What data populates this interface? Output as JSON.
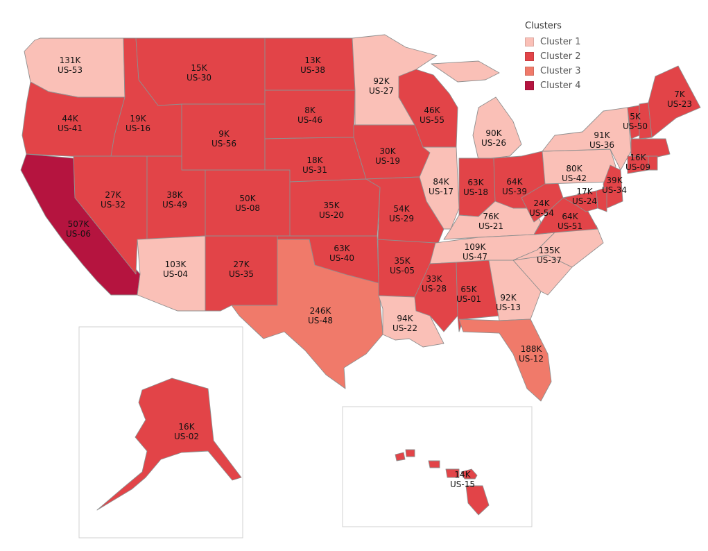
{
  "legend": {
    "title": "Clusters",
    "items": [
      {
        "key": "c1",
        "label": "Cluster 1",
        "color": "#fac0b7"
      },
      {
        "key": "c2",
        "label": "Cluster 2",
        "color": "#e24448"
      },
      {
        "key": "c3",
        "label": "Cluster 3",
        "color": "#f07a6a"
      },
      {
        "key": "c4",
        "label": "Cluster 4",
        "color": "#b5143f"
      }
    ]
  },
  "states": [
    {
      "id": "WA",
      "value": "131K",
      "code": "US-53",
      "cluster": "c1"
    },
    {
      "id": "OR",
      "value": "44K",
      "code": "US-41",
      "cluster": "c2"
    },
    {
      "id": "CA",
      "value": "507K",
      "code": "US-06",
      "cluster": "c4"
    },
    {
      "id": "ID",
      "value": "19K",
      "code": "US-16",
      "cluster": "c2"
    },
    {
      "id": "NV",
      "value": "27K",
      "code": "US-32",
      "cluster": "c2"
    },
    {
      "id": "MT",
      "value": "15K",
      "code": "US-30",
      "cluster": "c2"
    },
    {
      "id": "WY",
      "value": "9K",
      "code": "US-56",
      "cluster": "c2"
    },
    {
      "id": "UT",
      "value": "38K",
      "code": "US-49",
      "cluster": "c2"
    },
    {
      "id": "AZ",
      "value": "103K",
      "code": "US-04",
      "cluster": "c1"
    },
    {
      "id": "CO",
      "value": "50K",
      "code": "US-08",
      "cluster": "c2"
    },
    {
      "id": "NM",
      "value": "27K",
      "code": "US-35",
      "cluster": "c2"
    },
    {
      "id": "ND",
      "value": "13K",
      "code": "US-38",
      "cluster": "c2"
    },
    {
      "id": "SD",
      "value": "8K",
      "code": "US-46",
      "cluster": "c2"
    },
    {
      "id": "NE",
      "value": "18K",
      "code": "US-31",
      "cluster": "c2"
    },
    {
      "id": "KS",
      "value": "35K",
      "code": "US-20",
      "cluster": "c2"
    },
    {
      "id": "OK",
      "value": "63K",
      "code": "US-40",
      "cluster": "c2"
    },
    {
      "id": "TX",
      "value": "246K",
      "code": "US-48",
      "cluster": "c3"
    },
    {
      "id": "MN",
      "value": "92K",
      "code": "US-27",
      "cluster": "c1"
    },
    {
      "id": "IA",
      "value": "30K",
      "code": "US-19",
      "cluster": "c2"
    },
    {
      "id": "MO",
      "value": "54K",
      "code": "US-29",
      "cluster": "c2"
    },
    {
      "id": "AR",
      "value": "35K",
      "code": "US-05",
      "cluster": "c2"
    },
    {
      "id": "LA",
      "value": "94K",
      "code": "US-22",
      "cluster": "c1"
    },
    {
      "id": "WI",
      "value": "46K",
      "code": "US-55",
      "cluster": "c2"
    },
    {
      "id": "IL",
      "value": "84K",
      "code": "US-17",
      "cluster": "c1"
    },
    {
      "id": "MI",
      "value": "90K",
      "code": "US-26",
      "cluster": "c1"
    },
    {
      "id": "IN",
      "value": "63K",
      "code": "US-18",
      "cluster": "c2"
    },
    {
      "id": "OH",
      "value": "64K",
      "code": "US-39",
      "cluster": "c2"
    },
    {
      "id": "KY",
      "value": "76K",
      "code": "US-21",
      "cluster": "c1"
    },
    {
      "id": "TN",
      "value": "109K",
      "code": "US-47",
      "cluster": "c1"
    },
    {
      "id": "MS",
      "value": "33K",
      "code": "US-28",
      "cluster": "c2"
    },
    {
      "id": "AL",
      "value": "65K",
      "code": "US-01",
      "cluster": "c2"
    },
    {
      "id": "GA",
      "value": "92K",
      "code": "US-13",
      "cluster": "c1"
    },
    {
      "id": "FL",
      "value": "188K",
      "code": "US-12",
      "cluster": "c3"
    },
    {
      "id": "SC",
      "value": "",
      "code": "",
      "cluster": "c1"
    },
    {
      "id": "NC",
      "value": "135K",
      "code": "US-37",
      "cluster": "c1"
    },
    {
      "id": "VA",
      "value": "64K",
      "code": "US-51",
      "cluster": "c2"
    },
    {
      "id": "WV",
      "value": "24K",
      "code": "US-54",
      "cluster": "c2"
    },
    {
      "id": "PA",
      "value": "80K",
      "code": "US-42",
      "cluster": "c1"
    },
    {
      "id": "NY",
      "value": "91K",
      "code": "US-36",
      "cluster": "c1"
    },
    {
      "id": "VT",
      "value": "5K",
      "code": "US-50",
      "cluster": "c2"
    },
    {
      "id": "NH",
      "value": "",
      "code": "",
      "cluster": "c2"
    },
    {
      "id": "ME",
      "value": "7K",
      "code": "US-23",
      "cluster": "c2"
    },
    {
      "id": "MA",
      "value": "16K",
      "code": "US-09",
      "cluster": "c2"
    },
    {
      "id": "CT",
      "value": "",
      "code": "",
      "cluster": "c2"
    },
    {
      "id": "RI",
      "value": "",
      "code": "",
      "cluster": "c2"
    },
    {
      "id": "NJ",
      "value": "39K",
      "code": "US-34",
      "cluster": "c2"
    },
    {
      "id": "DE",
      "value": "17K",
      "code": "US-24",
      "cluster": "c2"
    },
    {
      "id": "MD",
      "value": "",
      "code": "",
      "cluster": "c2"
    },
    {
      "id": "AK",
      "value": "16K",
      "code": "US-02",
      "cluster": "c2"
    },
    {
      "id": "HI",
      "value": "14K",
      "code": "US-15",
      "cluster": "c2"
    }
  ]
}
